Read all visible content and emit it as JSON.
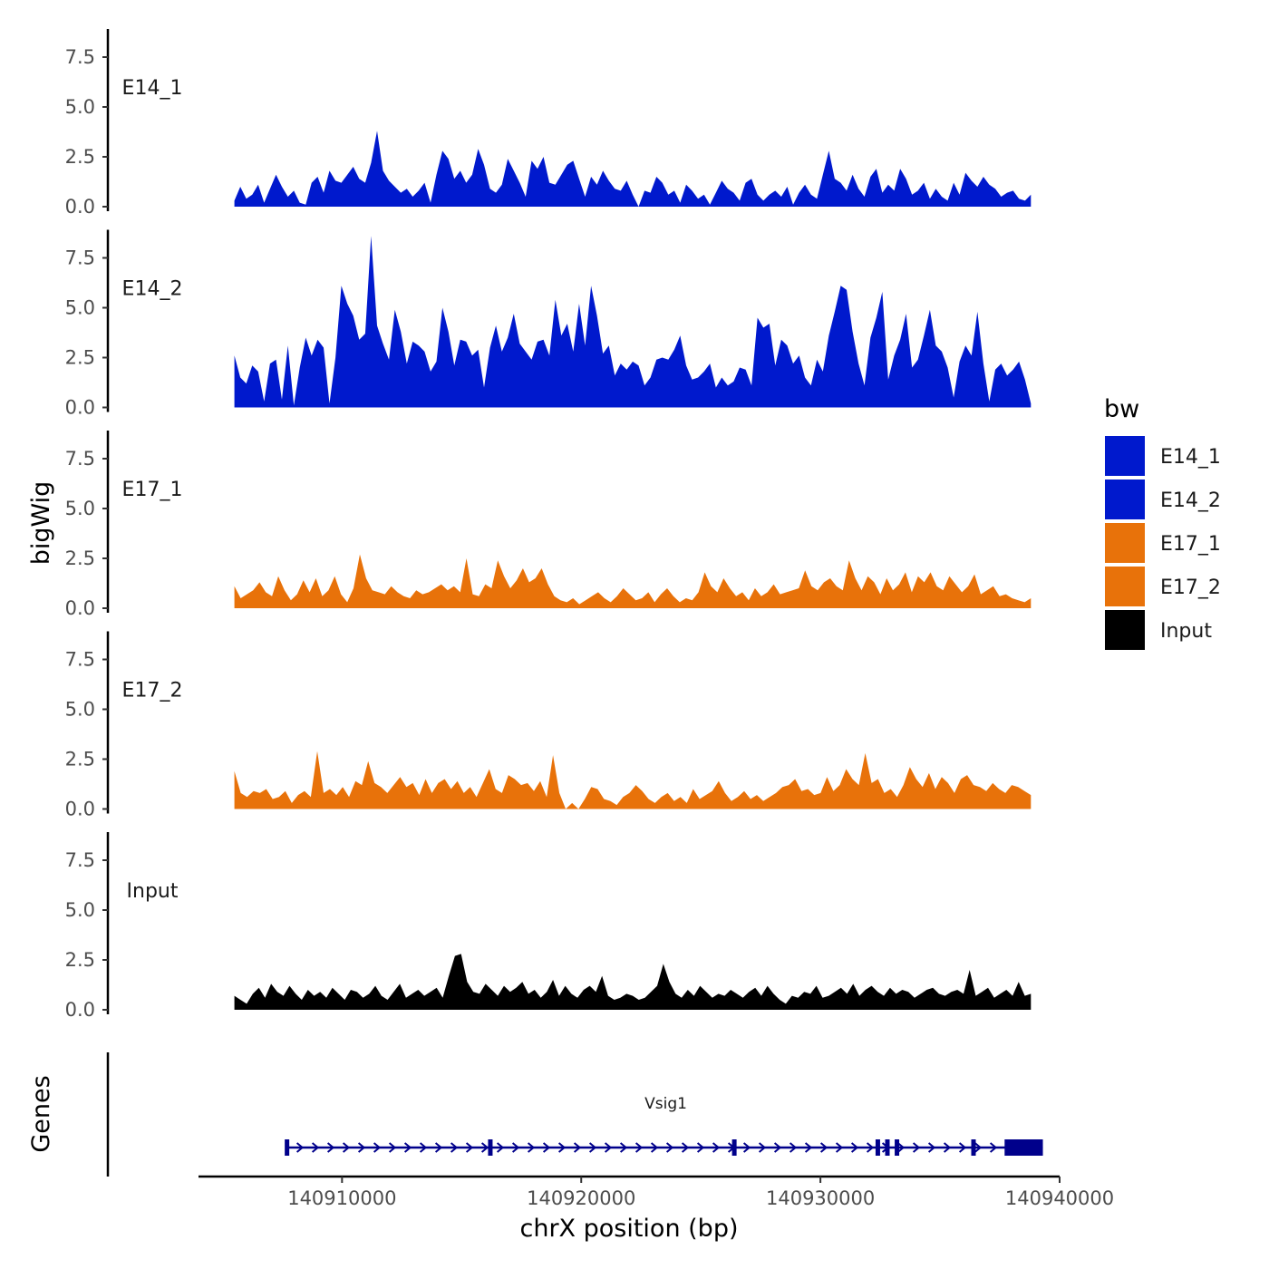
{
  "chart_data": {
    "type": "area",
    "ylabel": "bigWig",
    "genes_label": "Genes",
    "xlabel": "chrX position (bp)",
    "xlim": [
      140904000,
      140940000
    ],
    "x_ticks": [
      140910000,
      140920000,
      140930000,
      140940000
    ],
    "x_tick_labels": [
      "140910000",
      "140920000",
      "140930000",
      "140940000"
    ],
    "data_range": [
      140905500,
      140938800
    ],
    "ylim": [
      0,
      9
    ],
    "y_ticks": [
      0,
      2.5,
      5,
      7.5
    ],
    "y_tick_labels": [
      "0.0",
      "2.5",
      "5.0",
      "7.5"
    ],
    "legend": {
      "title": "bw",
      "position": "right",
      "entries": [
        {
          "label": "E14_1",
          "color": "#0019CD"
        },
        {
          "label": "E14_2",
          "color": "#0019CD"
        },
        {
          "label": "E17_1",
          "color": "#E8720A"
        },
        {
          "label": "E17_2",
          "color": "#E8720A"
        },
        {
          "label": "Input",
          "color": "#000000"
        }
      ]
    },
    "series": [
      {
        "name": "E14_1",
        "color": "#0019CD",
        "values": [
          0.3,
          1.0,
          0.4,
          0.6,
          1.1,
          0.2,
          0.9,
          1.6,
          1.0,
          0.5,
          0.8,
          0.2,
          0.1,
          1.2,
          1.5,
          0.7,
          1.8,
          1.3,
          1.2,
          1.6,
          2.0,
          1.4,
          1.2,
          2.2,
          3.8,
          1.8,
          1.3,
          1.0,
          0.7,
          0.9,
          0.5,
          0.8,
          1.2,
          0.2,
          1.6,
          2.8,
          2.4,
          1.4,
          1.8,
          1.2,
          1.6,
          2.9,
          2.1,
          0.9,
          0.7,
          1.1,
          2.4,
          1.8,
          1.2,
          0.5,
          2.3,
          1.9,
          2.5,
          1.2,
          1.1,
          1.6,
          2.1,
          2.3,
          1.4,
          0.5,
          1.5,
          1.1,
          1.8,
          1.3,
          0.9,
          0.8,
          1.3,
          0.6,
          0.0,
          0.8,
          0.7,
          1.5,
          1.2,
          0.6,
          0.8,
          0.2,
          1.1,
          0.8,
          0.4,
          0.6,
          0.1,
          0.7,
          1.3,
          0.9,
          0.7,
          0.3,
          1.2,
          1.4,
          0.6,
          0.3,
          0.6,
          0.8,
          0.5,
          1.0,
          0.1,
          0.7,
          1.1,
          0.6,
          0.4,
          1.6,
          2.8,
          1.4,
          1.2,
          0.8,
          1.6,
          0.9,
          0.5,
          1.5,
          1.9,
          0.7,
          1.1,
          0.8,
          1.9,
          1.4,
          0.6,
          0.8,
          1.2,
          0.4,
          0.9,
          0.5,
          0.3,
          1.2,
          0.6,
          1.7,
          1.3,
          1.0,
          1.5,
          1.1,
          0.9,
          0.5,
          0.7,
          0.8,
          0.4,
          0.3,
          0.6
        ]
      },
      {
        "name": "E14_2",
        "color": "#0019CD",
        "values": [
          2.6,
          1.5,
          1.2,
          2.1,
          1.8,
          0.3,
          2.2,
          2.4,
          0.4,
          3.1,
          0.1,
          2.0,
          3.5,
          2.6,
          3.4,
          3.0,
          0.2,
          2.5,
          6.1,
          5.2,
          4.6,
          3.4,
          3.7,
          8.6,
          4.1,
          3.2,
          2.4,
          4.9,
          3.8,
          2.2,
          3.3,
          3.1,
          2.8,
          1.8,
          2.3,
          5.0,
          3.8,
          2.1,
          3.4,
          3.3,
          2.6,
          2.9,
          1.0,
          3.0,
          4.1,
          2.8,
          3.5,
          4.7,
          3.2,
          2.8,
          2.4,
          3.3,
          3.4,
          2.6,
          5.4,
          3.6,
          4.2,
          2.8,
          5.2,
          3.1,
          6.1,
          4.6,
          2.7,
          3.1,
          1.6,
          2.2,
          1.9,
          2.3,
          2.1,
          1.1,
          1.5,
          2.4,
          2.5,
          2.4,
          2.9,
          3.6,
          2.1,
          1.4,
          1.5,
          1.8,
          2.2,
          1.0,
          1.5,
          1.1,
          1.3,
          2.0,
          1.9,
          1.1,
          4.5,
          4.0,
          4.2,
          2.1,
          3.4,
          3.1,
          2.2,
          2.6,
          1.5,
          1.1,
          2.4,
          1.8,
          3.6,
          4.8,
          6.1,
          5.9,
          3.8,
          2.2,
          1.1,
          3.5,
          4.5,
          5.8,
          1.4,
          2.6,
          3.4,
          4.7,
          2.0,
          2.4,
          3.6,
          4.9,
          3.1,
          2.8,
          2.0,
          0.5,
          2.3,
          3.1,
          2.6,
          4.8,
          2.2,
          0.3,
          1.9,
          2.2,
          1.6,
          1.9,
          2.3,
          1.4,
          0.2
        ]
      },
      {
        "name": "E17_1",
        "color": "#E8720A",
        "values": [
          1.1,
          0.5,
          0.7,
          0.9,
          1.3,
          0.8,
          0.6,
          1.6,
          0.9,
          0.4,
          0.7,
          1.4,
          0.8,
          1.5,
          0.6,
          0.9,
          1.6,
          0.7,
          0.3,
          1.0,
          2.7,
          1.5,
          0.9,
          0.8,
          0.7,
          1.1,
          0.8,
          0.6,
          0.5,
          0.9,
          0.7,
          0.8,
          1.0,
          1.2,
          0.9,
          1.1,
          0.8,
          2.5,
          0.7,
          0.6,
          1.2,
          1.0,
          2.4,
          1.6,
          1.0,
          1.4,
          2.0,
          1.3,
          1.5,
          2.0,
          1.2,
          0.6,
          0.4,
          0.3,
          0.5,
          0.2,
          0.4,
          0.6,
          0.8,
          0.5,
          0.3,
          0.6,
          1.0,
          0.7,
          0.4,
          0.5,
          0.8,
          0.3,
          0.7,
          1.0,
          0.6,
          0.3,
          0.5,
          0.4,
          0.8,
          1.8,
          1.1,
          0.8,
          1.5,
          1.0,
          0.6,
          0.8,
          0.4,
          1.0,
          0.6,
          0.8,
          1.2,
          0.7,
          0.8,
          0.9,
          1.0,
          1.9,
          1.1,
          0.9,
          1.3,
          1.5,
          1.1,
          0.9,
          2.4,
          1.5,
          0.9,
          1.6,
          1.3,
          0.7,
          1.5,
          0.9,
          1.2,
          1.8,
          0.8,
          1.6,
          1.3,
          1.8,
          1.1,
          0.9,
          1.6,
          1.2,
          0.8,
          1.1,
          1.7,
          0.7,
          0.9,
          1.1,
          0.6,
          0.7,
          0.5,
          0.4,
          0.3,
          0.5
        ]
      },
      {
        "name": "E17_2",
        "color": "#E8720A",
        "values": [
          1.9,
          0.8,
          0.6,
          0.9,
          0.8,
          1.0,
          0.5,
          0.6,
          0.9,
          0.3,
          0.7,
          0.9,
          0.6,
          2.9,
          0.8,
          1.0,
          0.7,
          1.1,
          0.6,
          1.4,
          1.2,
          2.4,
          1.3,
          1.1,
          0.8,
          1.2,
          1.6,
          1.1,
          1.3,
          0.7,
          1.5,
          0.8,
          1.3,
          1.5,
          1.0,
          1.4,
          0.8,
          1.1,
          0.6,
          1.3,
          2.0,
          1.0,
          0.8,
          1.7,
          1.5,
          1.2,
          1.3,
          0.9,
          1.4,
          0.6,
          2.7,
          0.8,
          0.0,
          0.3,
          0.0,
          0.5,
          1.1,
          1.0,
          0.5,
          0.4,
          0.2,
          0.6,
          0.8,
          1.2,
          0.9,
          0.5,
          0.3,
          0.6,
          0.8,
          0.4,
          0.6,
          0.3,
          1.0,
          0.5,
          0.7,
          0.9,
          1.4,
          0.8,
          0.4,
          0.6,
          0.9,
          0.5,
          0.7,
          0.4,
          0.6,
          0.8,
          1.1,
          1.2,
          1.5,
          0.9,
          1.0,
          0.7,
          0.8,
          1.6,
          0.9,
          1.2,
          2.0,
          1.5,
          1.2,
          2.8,
          1.3,
          1.5,
          0.8,
          1.0,
          0.6,
          1.2,
          2.1,
          1.5,
          1.1,
          1.8,
          1.0,
          1.6,
          1.3,
          0.8,
          1.5,
          1.7,
          1.2,
          1.1,
          0.9,
          1.3,
          1.0,
          0.8,
          1.2,
          1.1,
          0.9,
          0.7
        ]
      },
      {
        "name": "Input",
        "color": "#000000",
        "values": [
          0.7,
          0.5,
          0.3,
          0.8,
          1.1,
          0.6,
          1.3,
          0.9,
          0.7,
          1.2,
          0.8,
          0.5,
          1.0,
          0.7,
          0.9,
          0.6,
          1.1,
          0.8,
          0.5,
          1.0,
          0.9,
          0.6,
          0.8,
          1.2,
          0.7,
          0.5,
          0.9,
          1.3,
          0.6,
          0.8,
          1.0,
          0.7,
          0.9,
          1.1,
          0.6,
          1.7,
          2.7,
          2.8,
          1.4,
          0.9,
          0.8,
          1.3,
          1.0,
          0.7,
          1.2,
          0.9,
          1.1,
          1.4,
          0.8,
          1.0,
          0.6,
          0.9,
          1.5,
          0.7,
          1.2,
          0.8,
          0.6,
          1.0,
          1.2,
          0.9,
          1.7,
          0.7,
          0.5,
          0.6,
          0.8,
          0.7,
          0.5,
          0.6,
          0.9,
          1.2,
          2.3,
          1.4,
          0.8,
          0.6,
          1.0,
          0.7,
          1.2,
          0.9,
          0.6,
          0.8,
          0.7,
          1.0,
          0.8,
          0.6,
          0.9,
          1.1,
          0.7,
          1.2,
          0.8,
          0.5,
          0.3,
          0.7,
          0.6,
          0.9,
          0.8,
          1.2,
          0.6,
          0.7,
          0.9,
          1.1,
          0.8,
          1.3,
          0.7,
          1.0,
          1.2,
          0.9,
          0.7,
          1.1,
          0.8,
          1.0,
          0.9,
          0.6,
          0.8,
          1.0,
          1.1,
          0.8,
          0.7,
          0.9,
          1.0,
          0.8,
          2.0,
          0.7,
          0.9,
          1.1,
          0.6,
          0.8,
          1.0,
          0.7,
          1.4,
          0.7,
          0.8
        ]
      }
    ],
    "gene_track": {
      "gene_name": "Vsig1",
      "strand": "+",
      "color": "#00008B",
      "gene_start": 140907700,
      "gene_end": 140939300,
      "small_exons": [
        140907700,
        140916200,
        140926400,
        140932400,
        140932800,
        140933200,
        140936400
      ],
      "utr_block": [
        140937700,
        140939300
      ]
    }
  }
}
